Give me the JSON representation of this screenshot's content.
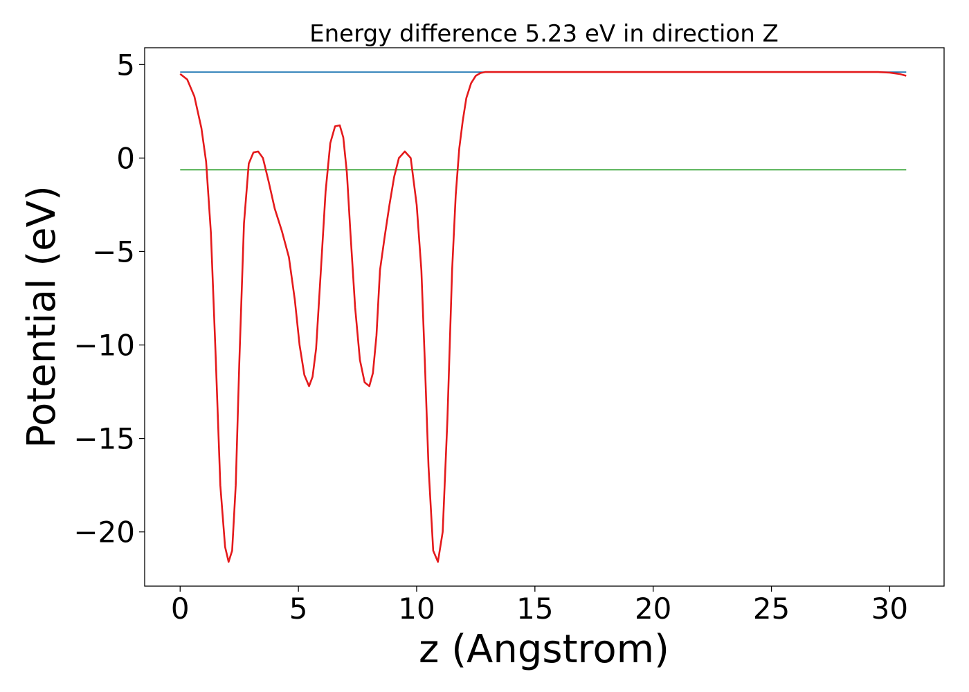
{
  "chart_data": {
    "type": "line",
    "title": "Energy difference 5.23 eV in direction Z",
    "xlabel": "z (Angstrom)",
    "ylabel": "Potential (eV)",
    "xlim": [
      -1.5,
      32.3
    ],
    "ylim": [
      -22.9,
      5.9
    ],
    "xticks": [
      0,
      5,
      10,
      15,
      20,
      25,
      30
    ],
    "xtick_labels": [
      "0",
      "5",
      "10",
      "15",
      "20",
      "25",
      "30"
    ],
    "yticks": [
      5,
      0,
      -5,
      -10,
      -15,
      -20
    ],
    "ytick_labels": [
      "5",
      "0",
      "−5",
      "−10",
      "−15",
      "−20"
    ],
    "grid": false,
    "series": [
      {
        "color": "#1f77b4",
        "x": [
          0,
          30.7
        ],
        "y": [
          4.6,
          4.6
        ]
      },
      {
        "color": "#2ca02c",
        "x": [
          0,
          30.7
        ],
        "y": [
          -0.63,
          -0.63
        ]
      },
      {
        "color": "#e41a1c",
        "x": [
          0,
          0.3,
          0.6,
          0.9,
          1.1,
          1.3,
          1.5,
          1.7,
          1.9,
          2.05,
          2.2,
          2.35,
          2.5,
          2.7,
          2.9,
          3.1,
          3.3,
          3.5,
          3.75,
          4.0,
          4.3,
          4.6,
          4.85,
          5.05,
          5.25,
          5.45,
          5.6,
          5.75,
          5.95,
          6.15,
          6.35,
          6.55,
          6.75,
          6.9,
          7.05,
          7.2,
          7.4,
          7.6,
          7.8,
          8.0,
          8.15,
          8.3,
          8.45,
          8.65,
          8.85,
          9.05,
          9.25,
          9.5,
          9.75,
          10.0,
          10.2,
          10.35,
          10.5,
          10.7,
          10.9,
          11.1,
          11.3,
          11.5,
          11.65,
          11.8,
          11.95,
          12.1,
          12.3,
          12.5,
          12.7,
          12.9,
          13.2,
          13.5,
          13.8,
          14.2,
          14.6,
          15.0,
          16.0,
          18.0,
          20.0,
          22.0,
          24.0,
          26.0,
          28.0,
          29.5,
          30.0,
          30.4,
          30.7
        ],
        "y": [
          4.5,
          4.2,
          3.3,
          1.6,
          -0.2,
          -4.0,
          -10.5,
          -17.5,
          -20.8,
          -21.6,
          -21.0,
          -17.5,
          -11.0,
          -3.5,
          -0.3,
          0.3,
          0.35,
          0.0,
          -1.3,
          -2.7,
          -3.9,
          -5.3,
          -7.6,
          -10.0,
          -11.6,
          -12.2,
          -11.7,
          -10.2,
          -6.0,
          -1.8,
          0.8,
          1.7,
          1.75,
          1.1,
          -0.8,
          -4.0,
          -8.0,
          -10.8,
          -12.0,
          -12.2,
          -11.5,
          -9.5,
          -6.0,
          -4.2,
          -2.5,
          -1.0,
          0.0,
          0.35,
          0.0,
          -2.5,
          -6.0,
          -11.0,
          -16.5,
          -21.0,
          -21.6,
          -20.0,
          -14.0,
          -6.0,
          -2.0,
          0.5,
          2.0,
          3.2,
          4.0,
          4.4,
          4.55,
          4.6,
          4.6,
          4.6,
          4.6,
          4.6,
          4.6,
          4.6,
          4.6,
          4.6,
          4.6,
          4.6,
          4.6,
          4.6,
          4.6,
          4.6,
          4.57,
          4.5,
          4.4
        ]
      }
    ]
  }
}
